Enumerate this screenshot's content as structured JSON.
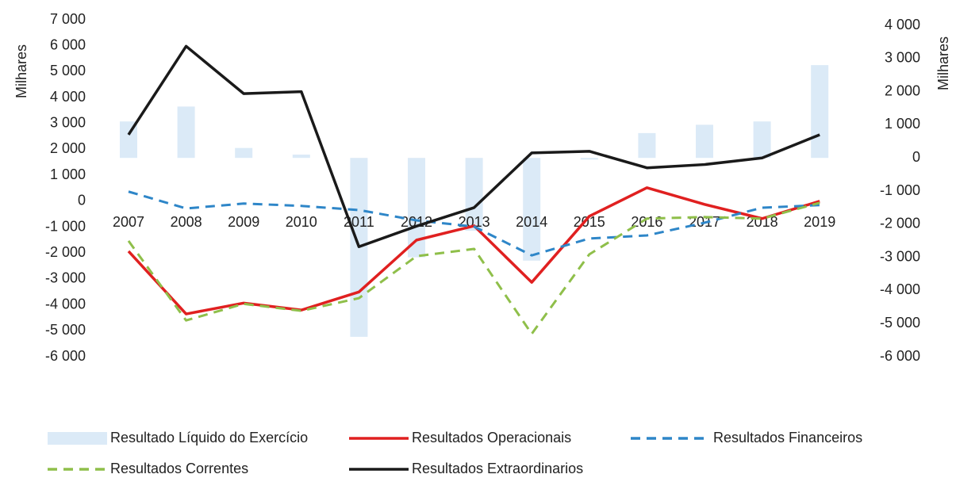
{
  "chart_data": {
    "type": "combo",
    "y_label": "Milhares",
    "y2_label": "Milhares",
    "categories": [
      "2007",
      "2008",
      "2009",
      "2010",
      "2011",
      "2012",
      "2013",
      "2014",
      "2015",
      "2016",
      "2017",
      "2018",
      "2019"
    ],
    "series": [
      {
        "name": "Resultado Líquido do Exercício",
        "type": "bar",
        "axis": "y2",
        "color": "#dbeaf7",
        "dashed": false,
        "values": [
          1100,
          1550,
          300,
          100,
          -5400,
          -3000,
          -2200,
          -3100,
          -50,
          750,
          1000,
          1100,
          2800
        ]
      },
      {
        "name": "Resultados Operacionais",
        "type": "line",
        "color": "#e02020",
        "dashed": false,
        "values": [
          -1930,
          -4350,
          -3930,
          -4200,
          -3500,
          -1500,
          -950,
          -3130,
          -580,
          520,
          -120,
          -670,
          0
        ]
      },
      {
        "name": "Resultados Financeiros",
        "type": "line",
        "color": "#2e86c8",
        "dashed": true,
        "values": [
          370,
          -280,
          -90,
          -180,
          -340,
          -740,
          -980,
          -2090,
          -1440,
          -1320,
          -830,
          -250,
          -150
        ]
      },
      {
        "name": "Resultados Correntes",
        "type": "line",
        "color": "#8fbf4a",
        "dashed": true,
        "values": [
          -1530,
          -4600,
          -3960,
          -4230,
          -3740,
          -2120,
          -1840,
          -5120,
          -2050,
          -670,
          -610,
          -670,
          -60
        ]
      },
      {
        "name": "Resultados Extraordinarios",
        "type": "line",
        "axis": "y2",
        "color": "#1a1a1a",
        "dashed": false,
        "values": [
          700,
          3370,
          1940,
          2000,
          -2680,
          -2060,
          -1500,
          150,
          200,
          -300,
          -200,
          0,
          700
        ]
      }
    ],
    "ylim": [
      -6000,
      7000
    ],
    "yticks": [
      {
        "value": -6000,
        "label": "-6 000"
      },
      {
        "value": -5000,
        "label": "-5 000"
      },
      {
        "value": -4000,
        "label": "-4 000"
      },
      {
        "value": -3000,
        "label": "-3 000"
      },
      {
        "value": -2000,
        "label": "-2 000"
      },
      {
        "value": -1000,
        "label": "-1 000"
      },
      0,
      {
        "value": 1000,
        "label": "1 000"
      },
      {
        "value": 2000,
        "label": "2 000"
      },
      {
        "value": 3000,
        "label": "3 000"
      },
      {
        "value": 4000,
        "label": "4 000"
      },
      {
        "value": 5000,
        "label": "5 000"
      },
      {
        "value": 6000,
        "label": "6 000"
      },
      {
        "value": 7000,
        "label": "7 000"
      }
    ],
    "y2lim": [
      -6000,
      4000
    ],
    "y2ticks": [
      {
        "value": -6000,
        "label": "-6 000"
      },
      {
        "value": -5000,
        "label": "-5 000"
      },
      {
        "value": -4000,
        "label": "-4 000"
      },
      {
        "value": -3000,
        "label": "-3 000"
      },
      {
        "value": -2000,
        "label": "-2 000"
      },
      {
        "value": -1000,
        "label": "-1 000"
      },
      0,
      {
        "value": 1000,
        "label": "1 000"
      },
      {
        "value": 2000,
        "label": "2 000"
      },
      {
        "value": 3000,
        "label": "3 000"
      },
      {
        "value": 4000,
        "label": "4 000"
      }
    ],
    "grid": false,
    "legend": "bottom"
  }
}
